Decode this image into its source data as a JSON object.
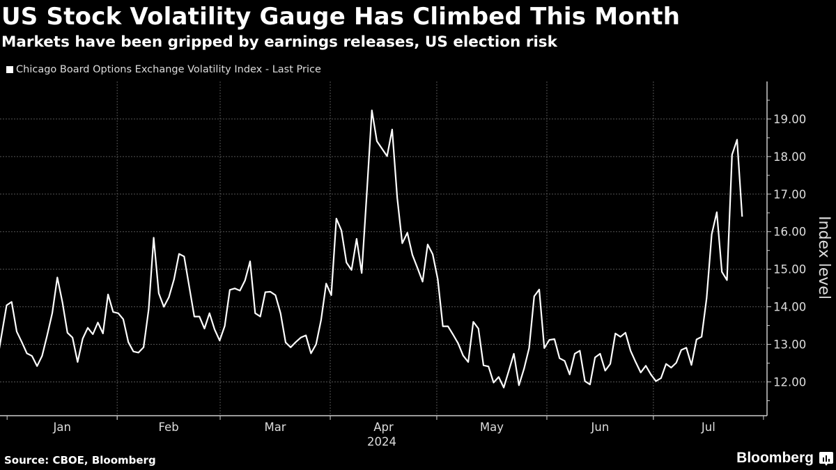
{
  "header": {
    "title": "US Stock Volatility Gauge Has Climbed This Month",
    "subtitle": "Markets have been gripped by earnings releases, US election risk"
  },
  "footer": {
    "source": "Source: CBOE, Bloomberg",
    "brand": "Bloomberg"
  },
  "chart_data": {
    "type": "line",
    "title": "US Stock Volatility Gauge Has Climbed This Month",
    "subtitle": "Markets have been gripped by earnings releases, US election risk",
    "xlabel": "2024",
    "ylabel": "Index level",
    "legend": {
      "placement": "top-left",
      "entries": [
        "Chicago Board Options Exchange Volatility Index - Last Price"
      ]
    },
    "grid": true,
    "line_color": "#ffffff",
    "background": "#000000",
    "xlim": [
      "2023-12-30",
      "2024-08-02"
    ],
    "ylim": [
      11.1,
      20.0
    ],
    "y_ticks": [
      "12.00",
      "13.00",
      "14.00",
      "15.00",
      "16.00",
      "17.00",
      "18.00",
      "19.00"
    ],
    "x_month_labels": [
      {
        "label": "Jan",
        "start": "2024-01-01",
        "end": "2024-02-01"
      },
      {
        "label": "Feb",
        "start": "2024-02-01",
        "end": "2024-03-01"
      },
      {
        "label": "Mar",
        "start": "2024-03-01",
        "end": "2024-04-01"
      },
      {
        "label": "Apr",
        "start": "2024-04-01",
        "end": "2024-05-01"
      },
      {
        "label": "May",
        "start": "2024-05-01",
        "end": "2024-06-01"
      },
      {
        "label": "Jun",
        "start": "2024-06-01",
        "end": "2024-07-01"
      },
      {
        "label": "Jul",
        "start": "2024-07-01",
        "end": "2024-08-01"
      }
    ],
    "series": [
      {
        "name": "Chicago Board Options Exchange Volatility Index - Last Price",
        "start_date": "2023-12-29",
        "end_date": "2024-07-26",
        "values": [
          12.44,
          13.24,
          14.04,
          14.13,
          13.34,
          13.06,
          12.76,
          12.69,
          12.42,
          12.69,
          13.24,
          13.83,
          14.78,
          14.12,
          13.31,
          13.18,
          12.53,
          13.15,
          13.44,
          13.27,
          13.58,
          13.29,
          14.33,
          13.86,
          13.83,
          13.67,
          13.06,
          12.81,
          12.78,
          12.92,
          13.93,
          15.84,
          14.36,
          14.0,
          14.26,
          14.73,
          15.41,
          15.34,
          14.54,
          13.74,
          13.74,
          13.42,
          13.83,
          13.4,
          13.1,
          13.49,
          14.45,
          14.49,
          14.43,
          14.7,
          15.21,
          13.83,
          13.74,
          14.39,
          14.4,
          14.31,
          13.83,
          13.05,
          12.92,
          13.06,
          13.18,
          13.24,
          12.76,
          13.0,
          13.65,
          14.62,
          14.31,
          16.35,
          16.03,
          15.18,
          14.98,
          15.81,
          14.9,
          17.02,
          19.23,
          18.41,
          18.21,
          18.01,
          18.72,
          16.9,
          15.69,
          15.97,
          15.38,
          15.03,
          14.67,
          15.66,
          15.4,
          14.73,
          13.48,
          13.48,
          13.26,
          13.03,
          12.7,
          12.53,
          13.6,
          13.42,
          12.44,
          12.41,
          11.98,
          12.13,
          11.85,
          12.3,
          12.75,
          11.91,
          12.35,
          12.9,
          14.28,
          14.46,
          12.9,
          13.12,
          13.14,
          12.63,
          12.56,
          12.2,
          12.75,
          12.83,
          12.02,
          11.93,
          12.65,
          12.75,
          12.3,
          12.48,
          13.29,
          13.2,
          13.31,
          12.83,
          12.53,
          12.25,
          12.43,
          12.2,
          12.02,
          12.1,
          12.48,
          12.38,
          12.51,
          12.85,
          12.91,
          12.45,
          13.13,
          13.2,
          14.23,
          15.93,
          16.52,
          14.93,
          14.71,
          18.05,
          18.45,
          16.4
        ]
      }
    ]
  }
}
